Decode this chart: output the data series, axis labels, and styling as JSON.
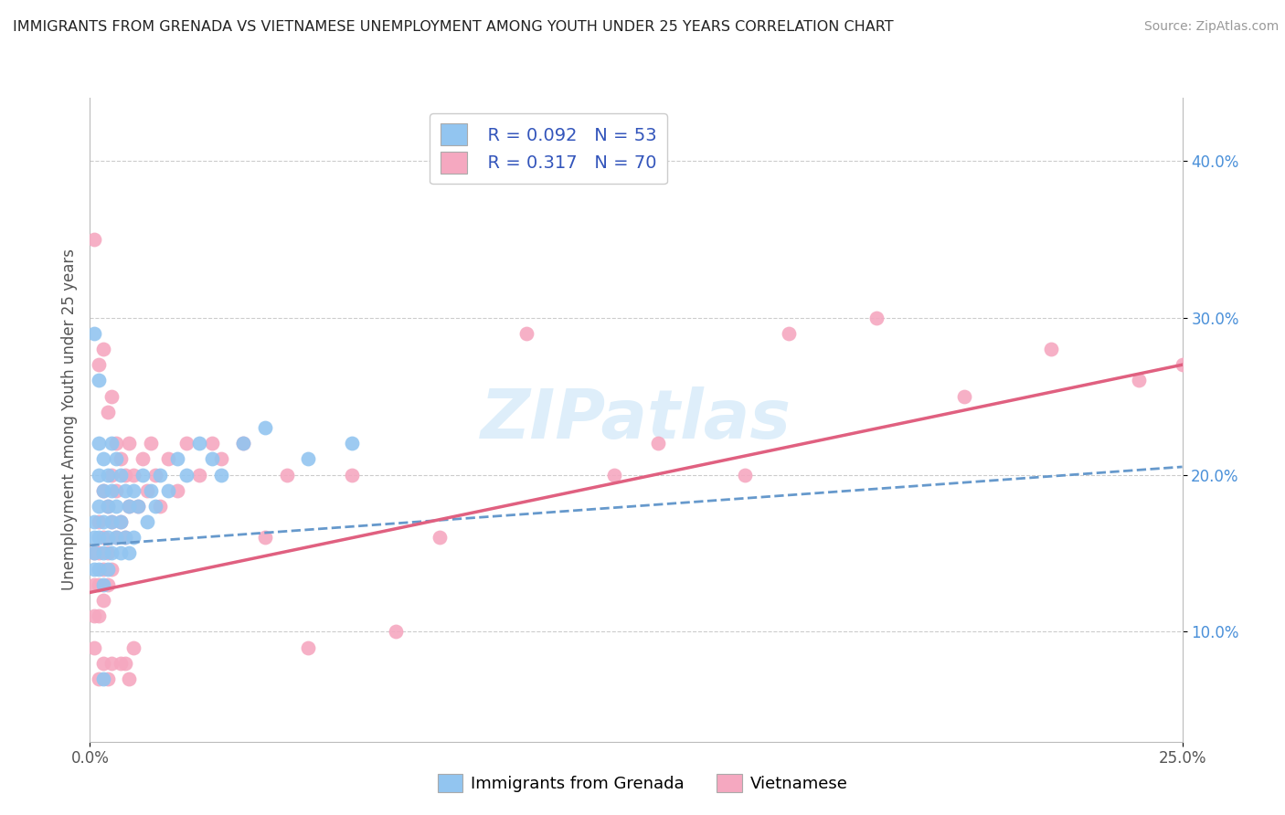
{
  "title": "IMMIGRANTS FROM GRENADA VS VIETNAMESE UNEMPLOYMENT AMONG YOUTH UNDER 25 YEARS CORRELATION CHART",
  "source": "Source: ZipAtlas.com",
  "ylabel": "Unemployment Among Youth under 25 years",
  "y_ticks_right": [
    0.1,
    0.2,
    0.3,
    0.4
  ],
  "y_tick_labels_right": [
    "10.0%",
    "20.0%",
    "30.0%",
    "40.0%"
  ],
  "xlim": [
    0.0,
    0.25
  ],
  "ylim": [
    0.03,
    0.44
  ],
  "legend_r1": "R = 0.092",
  "legend_n1": "N = 53",
  "legend_r2": "R = 0.317",
  "legend_n2": "N = 70",
  "color_blue": "#92c5f0",
  "color_pink": "#f5a8c0",
  "color_blue_line": "#6699cc",
  "color_pink_line": "#e06080",
  "watermark": "ZIPatlas",
  "legend_label_1": "Immigrants from Grenada",
  "legend_label_2": "Vietnamese",
  "blue_scatter_x": [
    0.001,
    0.001,
    0.001,
    0.001,
    0.002,
    0.002,
    0.002,
    0.002,
    0.002,
    0.003,
    0.003,
    0.003,
    0.003,
    0.003,
    0.004,
    0.004,
    0.004,
    0.004,
    0.005,
    0.005,
    0.005,
    0.005,
    0.006,
    0.006,
    0.006,
    0.007,
    0.007,
    0.007,
    0.008,
    0.008,
    0.009,
    0.009,
    0.01,
    0.01,
    0.011,
    0.012,
    0.013,
    0.014,
    0.015,
    0.016,
    0.018,
    0.02,
    0.022,
    0.025,
    0.028,
    0.03,
    0.035,
    0.04,
    0.05,
    0.06,
    0.001,
    0.002,
    0.003
  ],
  "blue_scatter_y": [
    0.17,
    0.16,
    0.15,
    0.14,
    0.22,
    0.2,
    0.18,
    0.16,
    0.14,
    0.21,
    0.19,
    0.17,
    0.15,
    0.13,
    0.2,
    0.18,
    0.16,
    0.14,
    0.22,
    0.19,
    0.17,
    0.15,
    0.21,
    0.18,
    0.16,
    0.2,
    0.17,
    0.15,
    0.19,
    0.16,
    0.18,
    0.15,
    0.19,
    0.16,
    0.18,
    0.2,
    0.17,
    0.19,
    0.18,
    0.2,
    0.19,
    0.21,
    0.2,
    0.22,
    0.21,
    0.2,
    0.22,
    0.23,
    0.21,
    0.22,
    0.29,
    0.26,
    0.07
  ],
  "pink_scatter_x": [
    0.001,
    0.001,
    0.001,
    0.001,
    0.002,
    0.002,
    0.002,
    0.002,
    0.003,
    0.003,
    0.003,
    0.003,
    0.004,
    0.004,
    0.004,
    0.005,
    0.005,
    0.005,
    0.006,
    0.006,
    0.007,
    0.007,
    0.008,
    0.008,
    0.009,
    0.009,
    0.01,
    0.011,
    0.012,
    0.013,
    0.014,
    0.015,
    0.016,
    0.018,
    0.02,
    0.022,
    0.025,
    0.028,
    0.03,
    0.035,
    0.04,
    0.045,
    0.05,
    0.06,
    0.07,
    0.08,
    0.1,
    0.12,
    0.13,
    0.15,
    0.16,
    0.18,
    0.2,
    0.22,
    0.24,
    0.25,
    0.001,
    0.002,
    0.003,
    0.004,
    0.005,
    0.006,
    0.007,
    0.008,
    0.009,
    0.01,
    0.002,
    0.003,
    0.004,
    0.005
  ],
  "pink_scatter_y": [
    0.15,
    0.13,
    0.11,
    0.09,
    0.17,
    0.15,
    0.13,
    0.11,
    0.19,
    0.16,
    0.14,
    0.12,
    0.18,
    0.15,
    0.13,
    0.2,
    0.17,
    0.14,
    0.19,
    0.16,
    0.21,
    0.17,
    0.2,
    0.16,
    0.22,
    0.18,
    0.2,
    0.18,
    0.21,
    0.19,
    0.22,
    0.2,
    0.18,
    0.21,
    0.19,
    0.22,
    0.2,
    0.22,
    0.21,
    0.22,
    0.16,
    0.2,
    0.09,
    0.2,
    0.1,
    0.16,
    0.29,
    0.2,
    0.22,
    0.2,
    0.29,
    0.3,
    0.25,
    0.28,
    0.26,
    0.27,
    0.35,
    0.27,
    0.28,
    0.24,
    0.25,
    0.22,
    0.08,
    0.08,
    0.07,
    0.09,
    0.07,
    0.08,
    0.07,
    0.08
  ]
}
